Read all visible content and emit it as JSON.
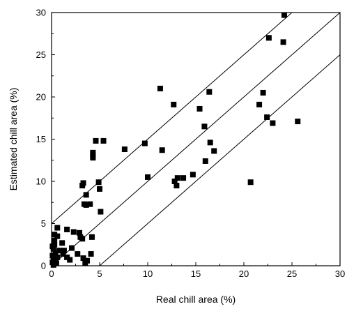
{
  "chart_data": {
    "type": "scatter",
    "xlabel": "Real chill area (%)",
    "ylabel": "Estimated chill area (%)",
    "xlim": [
      0,
      30
    ],
    "ylim": [
      0,
      30
    ],
    "x_ticks": [
      "0",
      "5",
      "10",
      "15",
      "20",
      "25",
      "30"
    ],
    "y_ticks": [
      "0",
      "5",
      "10",
      "15",
      "20",
      "25",
      "30"
    ],
    "marker": "filled-square",
    "marker_color": "#000000",
    "grid": false,
    "legend": "none",
    "reference_lines": [
      {
        "slope": 1,
        "intercept": 5
      },
      {
        "slope": 1,
        "intercept": 0
      },
      {
        "slope": 1,
        "intercept": -5
      }
    ],
    "points": [
      [
        24.2,
        29.7
      ],
      [
        22.6,
        27.0
      ],
      [
        24.1,
        26.5
      ],
      [
        11.3,
        21.0
      ],
      [
        16.4,
        20.6
      ],
      [
        22.0,
        20.5
      ],
      [
        12.7,
        19.1
      ],
      [
        21.6,
        19.1
      ],
      [
        15.4,
        18.6
      ],
      [
        22.4,
        17.6
      ],
      [
        25.6,
        17.1
      ],
      [
        23.0,
        16.9
      ],
      [
        15.9,
        16.5
      ],
      [
        4.6,
        14.8
      ],
      [
        5.4,
        14.8
      ],
      [
        9.7,
        14.5
      ],
      [
        7.6,
        13.8
      ],
      [
        16.5,
        14.6
      ],
      [
        11.5,
        13.7
      ],
      [
        16.9,
        13.6
      ],
      [
        4.3,
        13.4
      ],
      [
        4.3,
        13.1
      ],
      [
        4.3,
        12.8
      ],
      [
        16.0,
        12.4
      ],
      [
        10.0,
        10.5
      ],
      [
        13.7,
        10.4
      ],
      [
        13.1,
        10.4
      ],
      [
        14.7,
        10.8
      ],
      [
        12.8,
        10.0
      ],
      [
        13.0,
        9.5
      ],
      [
        20.7,
        9.9
      ],
      [
        4.9,
        9.9
      ],
      [
        3.3,
        9.8
      ],
      [
        3.2,
        9.5
      ],
      [
        5.0,
        9.1
      ],
      [
        3.6,
        8.4
      ],
      [
        3.4,
        7.3
      ],
      [
        3.6,
        7.2
      ],
      [
        4.0,
        7.3
      ],
      [
        5.1,
        6.4
      ],
      [
        0.6,
        4.5
      ],
      [
        1.6,
        4.3
      ],
      [
        2.3,
        4.0
      ],
      [
        2.9,
        3.9
      ],
      [
        0.3,
        3.7
      ],
      [
        0.6,
        3.5
      ],
      [
        3.0,
        3.4
      ],
      [
        4.2,
        3.4
      ],
      [
        0.3,
        3.0
      ],
      [
        3.2,
        3.2
      ],
      [
        0.3,
        2.5
      ],
      [
        1.1,
        2.7
      ],
      [
        0.1,
        2.3
      ],
      [
        0.2,
        2.0
      ],
      [
        2.1,
        2.1
      ],
      [
        0.8,
        1.8
      ],
      [
        1.3,
        1.8
      ],
      [
        0.4,
        1.5
      ],
      [
        1.2,
        1.4
      ],
      [
        2.7,
        1.4
      ],
      [
        4.1,
        1.4
      ],
      [
        0.1,
        1.2
      ],
      [
        0.6,
        1.0
      ],
      [
        1.6,
        1.0
      ],
      [
        3.3,
        0.9
      ],
      [
        0.3,
        0.8
      ],
      [
        1.9,
        0.7
      ],
      [
        0.2,
        0.6
      ],
      [
        3.7,
        0.6
      ],
      [
        0.1,
        0.4
      ],
      [
        0.5,
        0.3
      ],
      [
        3.5,
        0.3
      ],
      [
        0.2,
        0.1
      ]
    ]
  }
}
